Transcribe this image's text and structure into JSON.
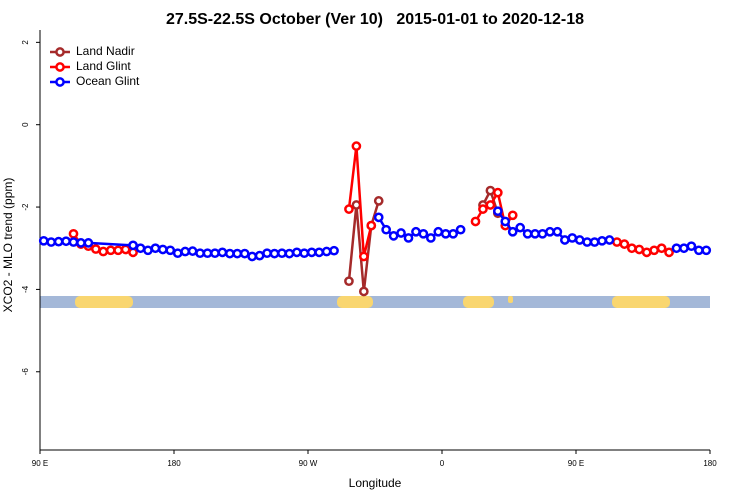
{
  "chart_data": {
    "type": "line",
    "title": "27.5S-22.5S October (Ver 10)   2015-01-01 to 2020-12-18",
    "x_label": "Longitude",
    "y_label": "XCO2 - MLO trend (ppm)",
    "xlim": [
      90,
      540
    ],
    "ylim": [
      -7.9,
      2.3
    ],
    "xticks": [
      {
        "value": 90,
        "label": "90 E"
      },
      {
        "value": 180,
        "label": "180"
      },
      {
        "value": 270,
        "label": "90 W"
      },
      {
        "value": 360,
        "label": "0"
      },
      {
        "value": 450,
        "label": "90 E"
      },
      {
        "value": 540,
        "label": "180"
      }
    ],
    "yticks": [
      2,
      0,
      -2,
      -4,
      -6
    ],
    "legend": "top-left",
    "series": [
      {
        "name": "Land Nadir",
        "color": "#a52a2a",
        "x": [
          297.5,
          302.5,
          307.5,
          312.5,
          317.5,
          382.5,
          387.5,
          392.5,
          397.5
        ],
        "values": [
          -3.8,
          -1.95,
          -4.05,
          -2.45,
          -1.85,
          null,
          -1.95,
          -1.6,
          -2.15
        ]
      },
      {
        "name": "Land Glint",
        "color": "#ff0000",
        "x": [
          112.5,
          117.5,
          122.5,
          127.5,
          132.5,
          137.5,
          142.5,
          147.5,
          152.5,
          292.5,
          297.5,
          302.5,
          307.5,
          312.5,
          377.5,
          382.5,
          387.5,
          392.5,
          397.5,
          402.5,
          407.5,
          472.5,
          477.5,
          482.5,
          487.5,
          492.5,
          497.5,
          502.5,
          507.5,
          512.5
        ],
        "values": [
          -2.65,
          -2.9,
          -2.95,
          -3.02,
          -3.08,
          -3.05,
          -3.05,
          -3.03,
          -3.1,
          null,
          -2.05,
          -0.52,
          -3.2,
          -2.45,
          null,
          -2.35,
          -2.05,
          -1.95,
          -1.65,
          -2.45,
          -2.2,
          null,
          -2.85,
          -2.9,
          -3.0,
          -3.03,
          -3.1,
          -3.05,
          -3.0,
          -3.1
        ]
      },
      {
        "name": "Ocean Glint",
        "color": "#0000ff",
        "x": [
          92.5,
          97.5,
          102.5,
          107.5,
          112.5,
          117.5,
          122.5,
          152.5,
          157.5,
          162.5,
          167.5,
          172.5,
          177.5,
          182.5,
          187.5,
          192.5,
          197.5,
          202.5,
          207.5,
          212.5,
          217.5,
          222.5,
          227.5,
          232.5,
          237.5,
          242.5,
          247.5,
          252.5,
          257.5,
          262.5,
          267.5,
          272.5,
          277.5,
          282.5,
          287.5,
          312.5,
          317.5,
          322.5,
          327.5,
          332.5,
          337.5,
          342.5,
          347.5,
          352.5,
          357.5,
          362.5,
          367.5,
          372.5,
          392.5,
          397.5,
          402.5,
          407.5,
          412.5,
          417.5,
          422.5,
          427.5,
          432.5,
          437.5,
          442.5,
          447.5,
          452.5,
          457.5,
          462.5,
          467.5,
          472.5,
          512.5,
          517.5,
          522.5,
          527.5,
          532.5,
          537.5
        ],
        "values": [
          -2.82,
          -2.85,
          -2.84,
          -2.83,
          -2.85,
          -2.87,
          -2.87,
          -2.93,
          -3.0,
          -3.05,
          -3.0,
          -3.03,
          -3.05,
          -3.12,
          -3.08,
          -3.07,
          -3.12,
          -3.12,
          -3.12,
          -3.1,
          -3.13,
          -3.13,
          -3.13,
          -3.2,
          -3.18,
          -3.12,
          -3.13,
          -3.12,
          -3.13,
          -3.1,
          -3.12,
          -3.1,
          -3.1,
          -3.08,
          -3.06,
          null,
          -2.25,
          -2.55,
          -2.7,
          -2.63,
          -2.75,
          -2.6,
          -2.65,
          -2.75,
          -2.6,
          -2.65,
          -2.65,
          -2.55,
          null,
          -2.1,
          -2.35,
          -2.6,
          -2.5,
          -2.65,
          -2.65,
          -2.65,
          -2.6,
          -2.6,
          -2.8,
          -2.75,
          -2.8,
          -2.85,
          -2.85,
          -2.82,
          -2.8,
          null,
          -3.0,
          -3.0,
          -2.95,
          -3.05,
          -3.05
        ]
      }
    ]
  }
}
